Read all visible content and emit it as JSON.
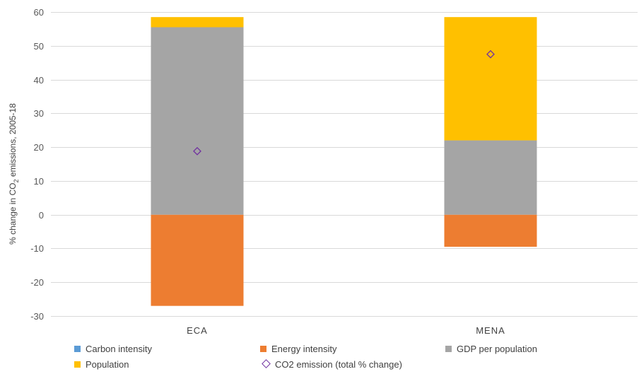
{
  "chart_data": {
    "type": "bar",
    "stacked": true,
    "categories": [
      "ECA",
      "MENA"
    ],
    "ylabel_prefix": "% change in CO",
    "ylabel_sub": "2",
    "ylabel_suffix": " emissions, 2005-18",
    "ylim": [
      -30,
      60
    ],
    "yticks": [
      60,
      50,
      40,
      30,
      20,
      10,
      0,
      -10,
      -20,
      -30
    ],
    "grid": true,
    "legend_position": "bottom",
    "series": [
      {
        "name": "Carbon intensity",
        "color": "#5b9bd5",
        "values": [
          0,
          0
        ]
      },
      {
        "name": "Energy intensity",
        "color": "#ed7d31",
        "values": [
          -27,
          -9.5
        ]
      },
      {
        "name": "GDP per population",
        "color": "#a5a5a5",
        "values": [
          55.5,
          22
        ]
      },
      {
        "name": "Population",
        "color": "#ffc000",
        "values": [
          3,
          36.5
        ]
      }
    ],
    "markers": {
      "name": "CO2 emission (total % change)",
      "color": "#7030a0",
      "values": [
        18.8,
        47.5
      ]
    }
  }
}
